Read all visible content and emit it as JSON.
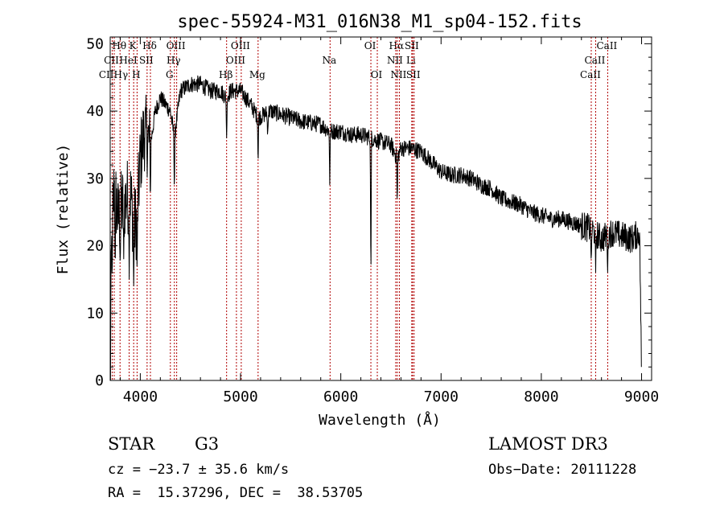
{
  "chart_data": {
    "type": "line",
    "title": "spec-55924-M31_016N38_M1_sp04-152.fits",
    "xlabel": "Wavelength (Å)",
    "ylabel": "Flux (relative)",
    "xlim": [
      3700,
      9100
    ],
    "ylim": [
      0,
      51
    ],
    "x_ticks": [
      4000,
      5000,
      6000,
      7000,
      8000,
      9000
    ],
    "x_tick_labels": [
      "4000",
      "5000",
      "6000",
      "7000",
      "8000",
      "9000"
    ],
    "y_ticks": [
      0,
      10,
      20,
      30,
      40,
      50
    ],
    "y_tick_labels": [
      "0",
      "10",
      "20",
      "30",
      "40",
      "50"
    ],
    "spectrum_anchor_points": [
      [
        3700,
        0
      ],
      [
        3715,
        22
      ],
      [
        3740,
        29
      ],
      [
        3780,
        24
      ],
      [
        3820,
        26
      ],
      [
        3860,
        27
      ],
      [
        3900,
        28
      ],
      [
        3935,
        23
      ],
      [
        3968,
        24
      ],
      [
        4000,
        33
      ],
      [
        4040,
        37
      ],
      [
        4101,
        35
      ],
      [
        4150,
        40
      ],
      [
        4200,
        42
      ],
      [
        4250,
        41
      ],
      [
        4300,
        40
      ],
      [
        4340,
        36
      ],
      [
        4400,
        43
      ],
      [
        4500,
        44
      ],
      [
        4600,
        44
      ],
      [
        4700,
        43
      ],
      [
        4800,
        43
      ],
      [
        4861,
        42
      ],
      [
        4900,
        43
      ],
      [
        5000,
        43
      ],
      [
        5100,
        41
      ],
      [
        5175,
        39
      ],
      [
        5300,
        40
      ],
      [
        5400,
        39.5
      ],
      [
        5500,
        39
      ],
      [
        5600,
        38.5
      ],
      [
        5800,
        38
      ],
      [
        5890,
        37
      ],
      [
        6000,
        37
      ],
      [
        6100,
        36.5
      ],
      [
        6200,
        36.5
      ],
      [
        6300,
        36
      ],
      [
        6400,
        35.5
      ],
      [
        6500,
        35
      ],
      [
        6563,
        33
      ],
      [
        6600,
        34.5
      ],
      [
        6700,
        34.5
      ],
      [
        6800,
        34
      ],
      [
        6900,
        32.5
      ],
      [
        7000,
        31
      ],
      [
        7100,
        30.5
      ],
      [
        7200,
        30.5
      ],
      [
        7300,
        30
      ],
      [
        7400,
        29
      ],
      [
        7500,
        28.5
      ],
      [
        7600,
        27
      ],
      [
        7700,
        26.5
      ],
      [
        7800,
        26
      ],
      [
        7900,
        25
      ],
      [
        8000,
        24.5
      ],
      [
        8100,
        24
      ],
      [
        8200,
        24
      ],
      [
        8300,
        23.5
      ],
      [
        8400,
        23
      ],
      [
        8500,
        22.5
      ],
      [
        8600,
        21
      ],
      [
        8700,
        22
      ],
      [
        8800,
        21.5
      ],
      [
        8900,
        21
      ],
      [
        8980,
        22
      ],
      [
        9000,
        2
      ]
    ],
    "absorption_dips": [
      [
        3720,
        15
      ],
      [
        3750,
        16
      ],
      [
        3800,
        17
      ],
      [
        3835,
        18
      ],
      [
        3889,
        15
      ],
      [
        3934,
        14
      ],
      [
        3968,
        16
      ],
      [
        4101,
        27
      ],
      [
        4340,
        28
      ],
      [
        4861,
        36
      ],
      [
        5175,
        32
      ],
      [
        5270,
        36
      ],
      [
        5890,
        29
      ],
      [
        6300,
        14
      ],
      [
        6563,
        26
      ],
      [
        8498,
        17
      ],
      [
        8542,
        16
      ],
      [
        8662,
        16
      ]
    ],
    "line_markers": [
      {
        "label": "Hθ",
        "x": 3798,
        "row": 1
      },
      {
        "label": "CII",
        "x": 3720,
        "row": 2
      },
      {
        "label": "CIIHγ",
        "x": 3740,
        "row": 3
      },
      {
        "label": "K",
        "x": 3934,
        "row": 1
      },
      {
        "label": "HeI",
        "x": 3889,
        "row": 2
      },
      {
        "label": "H",
        "x": 3968,
        "row": 3
      },
      {
        "label": "Hδ",
        "x": 4101,
        "row": 1
      },
      {
        "label": "SII",
        "x": 4068,
        "row": 2
      },
      {
        "label": "OIII",
        "x": 4363,
        "row": 1
      },
      {
        "label": "Hγ",
        "x": 4340,
        "row": 2
      },
      {
        "label": "G",
        "x": 4300,
        "row": 3
      },
      {
        "label": "OIII",
        "x": 5007,
        "row": 1
      },
      {
        "label": "OIII",
        "x": 4959,
        "row": 2
      },
      {
        "label": "Hβ",
        "x": 4861,
        "row": 3
      },
      {
        "label": "Mg",
        "x": 5175,
        "row": 3
      },
      {
        "label": "Na",
        "x": 5893,
        "row": 2
      },
      {
        "label": "OI",
        "x": 6300,
        "row": 1
      },
      {
        "label": "OI",
        "x": 6364,
        "row": 3
      },
      {
        "label": "Hα",
        "x": 6563,
        "row": 1
      },
      {
        "label": "SII",
        "x": 6716,
        "row": 1
      },
      {
        "label": "NII",
        "x": 6548,
        "row": 2
      },
      {
        "label": "Li",
        "x": 6708,
        "row": 2
      },
      {
        "label": "NII",
        "x": 6584,
        "row": 3
      },
      {
        "label": "SII",
        "x": 6731,
        "row": 3
      },
      {
        "label": "CaII",
        "x": 8662,
        "row": 1
      },
      {
        "label": "CaII",
        "x": 8542,
        "row": 2
      },
      {
        "label": "CaII",
        "x": 8498,
        "row": 3
      }
    ]
  },
  "footer": {
    "object_class": "STAR",
    "subclass": "G3",
    "release": "LAMOST DR3",
    "redshift": "cz = −23.7 ± 35.6 km/s",
    "obs_date": "Obs−Date: 20111228",
    "coordinates": "RA =  15.37296, DEC =  38.53705"
  }
}
